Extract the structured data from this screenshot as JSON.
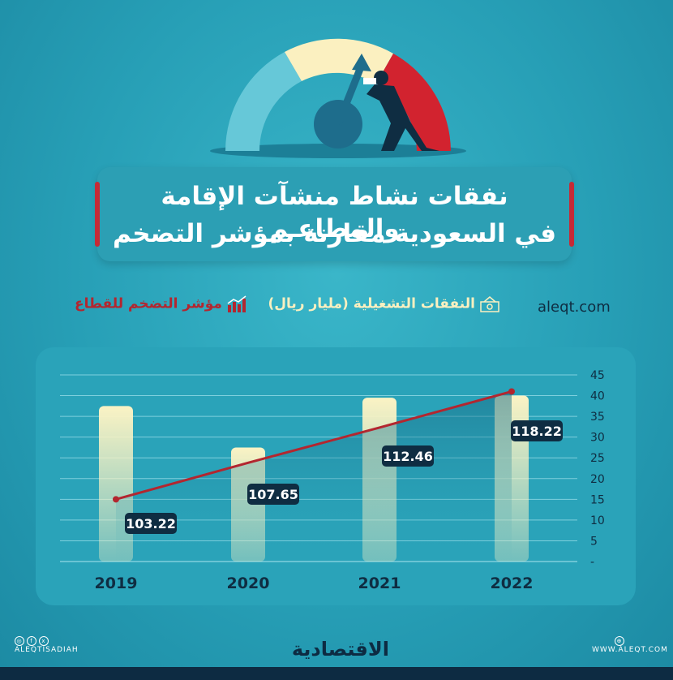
{
  "title": {
    "line1": "نفقات نشاط منشآت الإقامة والمطاعـم",
    "line2": "في السعودية مقارنة بمؤشر التضخم"
  },
  "legend": {
    "inflation_label": "مؤشر التضخم للقطاع",
    "spending_label": "النفقات التشغيلية (مليار ريال)",
    "site": "aleqt.com"
  },
  "colors": {
    "bar": "#fbf3c4",
    "line": "#b3262f",
    "label_bg": "#0f2d42",
    "axis_text": "#0f2d42"
  },
  "chart_data": {
    "type": "bar",
    "categories": [
      "2019",
      "2020",
      "2021",
      "2022"
    ],
    "series": [
      {
        "values": [
          37.5,
          27.5,
          39.5,
          40
        ]
      },
      {
        "values": [
          15,
          23.8,
          32.3,
          41
        ]
      }
    ],
    "data_labels": [
      "103.22",
      "107.65",
      "112.46",
      "118.22"
    ],
    "y_ticks": [
      "-",
      "5",
      "10",
      "15",
      "20",
      "25",
      "30",
      "35",
      "40",
      "45"
    ],
    "ylim": [
      0,
      45
    ],
    "grid": true
  },
  "footer": {
    "left_handle": "ALEQTISADIAH",
    "right_site": "WWW.ALEQT.COM",
    "brand": "الاقتصادية"
  }
}
